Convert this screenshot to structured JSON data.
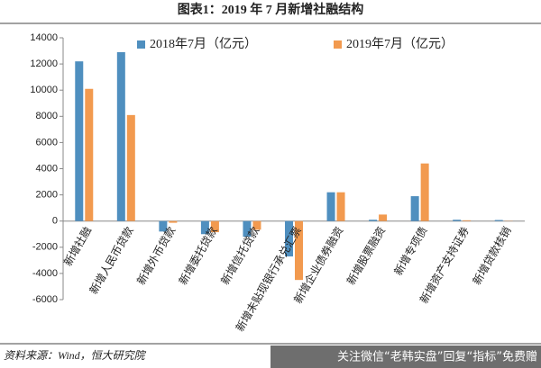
{
  "chart_data": {
    "type": "bar",
    "title": "图表1：2019 年 7 月新增社融结构",
    "categories": [
      "新增社融",
      "新增人民币贷款",
      "新增外币贷款",
      "新增委托贷款",
      "新增信托贷款",
      "新增未贴现银行承兑汇票",
      "新增企业债券融资",
      "新增股票融资",
      "新增专项债",
      "新增资产支持证券",
      "新增贷款核销"
    ],
    "series": [
      {
        "name": "2018年7月（亿元）",
        "color": "#4f8fbf",
        "values": [
          12200,
          12900,
          -800,
          -1000,
          -1200,
          -2700,
          2200,
          100,
          1900,
          100,
          80
        ]
      },
      {
        "name": "2019年7月（亿元）",
        "color": "#f29a4f",
        "values": [
          10100,
          8100,
          -130,
          -850,
          -660,
          -4500,
          2200,
          500,
          4400,
          60,
          20
        ]
      }
    ],
    "ylim": [
      -6000,
      14000
    ],
    "yticks": [
      -6000,
      -4000,
      -2000,
      0,
      2000,
      4000,
      6000,
      8000,
      10000,
      12000,
      14000
    ],
    "source": "资料来源：Wind，恒大研究院",
    "watermark": "关注微信“老韩实盘”回复“指标”免费赠"
  }
}
